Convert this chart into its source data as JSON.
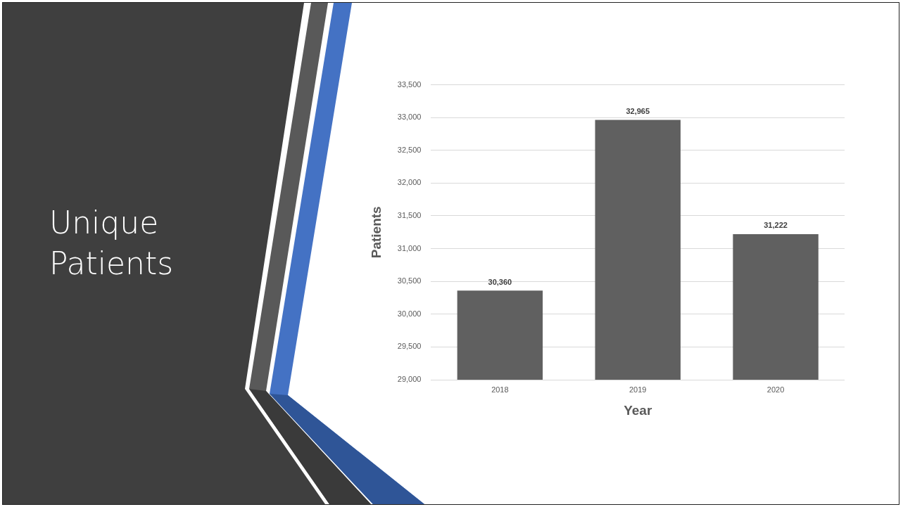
{
  "chart_data": {
    "type": "bar",
    "title": "Unique Patients",
    "xlabel": "Year",
    "ylabel": "Patients",
    "categories": [
      "2018",
      "2019",
      "2020"
    ],
    "values": [
      30360,
      32965,
      31222
    ],
    "value_labels": [
      "30,360",
      "32,965",
      "31,222"
    ],
    "color": "#606060",
    "ylim": [
      29000,
      33500
    ],
    "yticks": [
      {
        "value": 29000,
        "label": "29,000"
      },
      {
        "value": 29500,
        "label": "29,500"
      },
      {
        "value": 30000,
        "label": "30,000"
      },
      {
        "value": 30500,
        "label": "30,500"
      },
      {
        "value": 31000,
        "label": "31,000"
      },
      {
        "value": 31500,
        "label": "31,500"
      },
      {
        "value": 32000,
        "label": "32,000"
      },
      {
        "value": 32500,
        "label": "32,500"
      },
      {
        "value": 33000,
        "label": "33,000"
      },
      {
        "value": 33500,
        "label": "33,500"
      }
    ],
    "grid": "y"
  }
}
